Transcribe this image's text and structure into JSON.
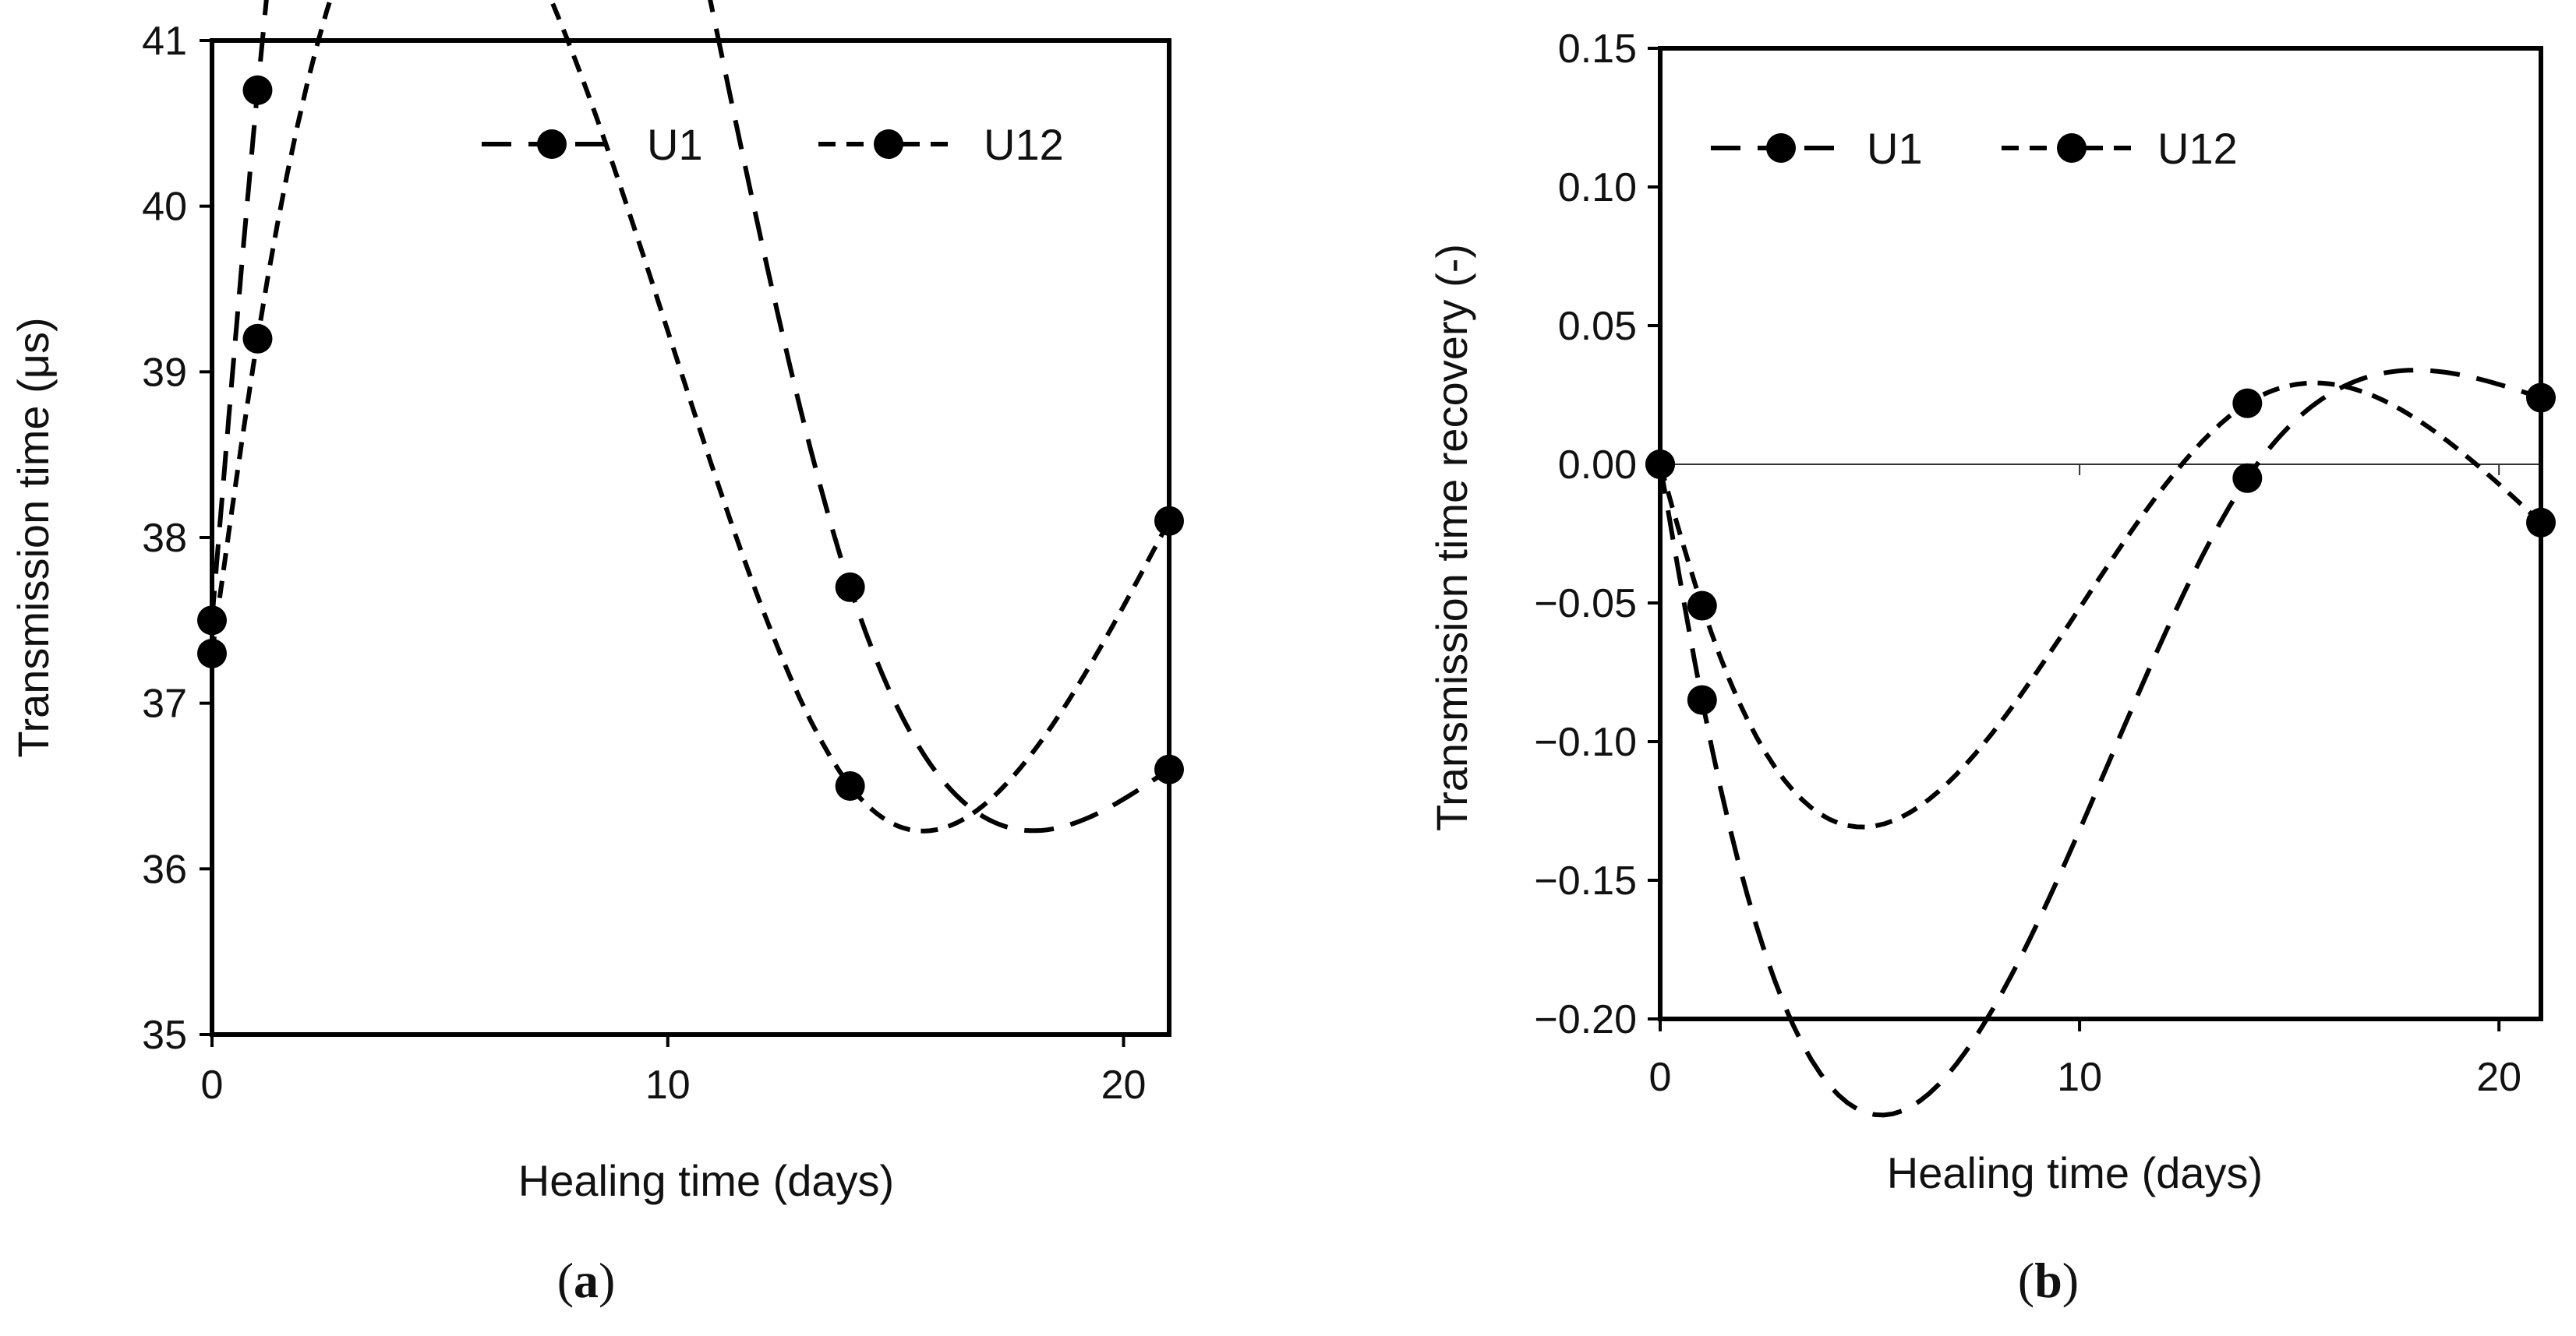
{
  "chart_data": [
    {
      "type": "line",
      "panel_label": "(a)",
      "panel_letter": "a",
      "title": "",
      "xlabel": "Healing time (days)",
      "ylabel": "Transmission time (μs)",
      "xlim": [
        0,
        21
      ],
      "ylim": [
        35,
        41
      ],
      "xticks": [
        0,
        10,
        20
      ],
      "xtick_labels": [
        "0",
        "10",
        "20"
      ],
      "yticks": [
        35,
        36,
        37,
        38,
        39,
        40,
        41
      ],
      "ytick_labels": [
        "35",
        "36",
        "37",
        "38",
        "39",
        "40",
        "41"
      ],
      "grid": false,
      "zero_line": false,
      "legend_position": "top-right",
      "series": [
        {
          "name": "U1",
          "dash": "long",
          "x": [
            0,
            1,
            14,
            21
          ],
          "y": [
            37.5,
            40.7,
            37.7,
            36.6
          ]
        },
        {
          "name": "U12",
          "dash": "short",
          "x": [
            0,
            1,
            14,
            21
          ],
          "y": [
            37.3,
            39.2,
            36.5,
            38.1
          ]
        }
      ]
    },
    {
      "type": "line",
      "panel_label": "(b)",
      "panel_letter": "b",
      "title": "",
      "xlabel": "Healing time (days)",
      "ylabel": "Transmission time recovery (-)",
      "xlim": [
        0,
        21
      ],
      "ylim": [
        -0.2,
        0.15
      ],
      "xticks": [
        0,
        10,
        20
      ],
      "xtick_labels": [
        "0",
        "10",
        "20"
      ],
      "yticks": [
        -0.2,
        -0.15,
        -0.1,
        -0.05,
        0.0,
        0.05,
        0.1,
        0.15
      ],
      "ytick_labels": [
        "−0.20",
        "−0.15",
        "−0.10",
        "−0.05",
        "0.00",
        "0.05",
        "0.10",
        "0.15"
      ],
      "grid": false,
      "zero_line": true,
      "legend_position": "top-left",
      "series": [
        {
          "name": "U1",
          "dash": "long",
          "x": [
            0,
            1,
            14,
            21
          ],
          "y": [
            0.0,
            -0.085,
            -0.005,
            0.024
          ]
        },
        {
          "name": "U12",
          "dash": "short",
          "x": [
            0,
            1,
            14,
            21
          ],
          "y": [
            0.0,
            -0.051,
            0.022,
            -0.021
          ]
        }
      ]
    }
  ]
}
